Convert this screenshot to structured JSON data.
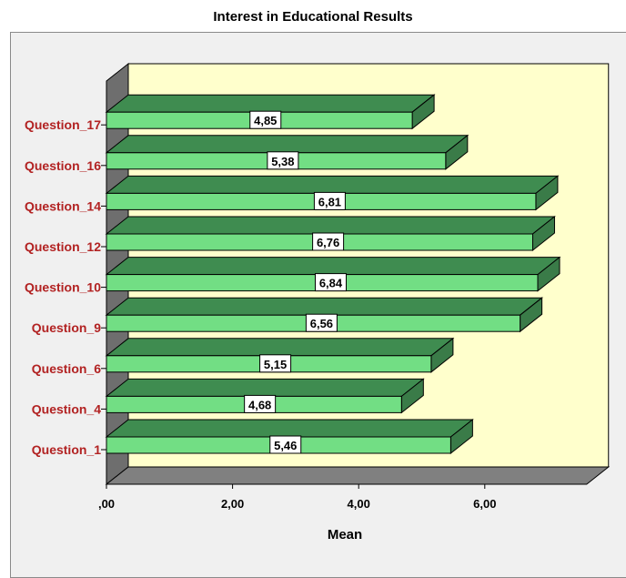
{
  "chart_data": {
    "type": "bar",
    "orientation": "horizontal",
    "style": "3d",
    "title": "Interest in Educational Results",
    "xlabel": "Mean",
    "ylabel": "",
    "categories": [
      "Question_1",
      "Question_4",
      "Question_6",
      "Question_9",
      "Question_10",
      "Question_12",
      "Question_14",
      "Question_16",
      "Question_17"
    ],
    "values": [
      5.46,
      4.68,
      5.15,
      6.56,
      6.84,
      6.76,
      6.81,
      5.38,
      4.85
    ],
    "value_labels": [
      "5,46",
      "4,68",
      "5,15",
      "6,56",
      "6,84",
      "6,76",
      "6,81",
      "5,38",
      "4,85"
    ],
    "xlim": [
      0,
      7.5
    ],
    "xticks": [
      0,
      2,
      4,
      6
    ],
    "xtick_labels": [
      ",00",
      "2,00",
      "4,00",
      "6,00"
    ],
    "grid": false,
    "legend": "none",
    "colors": {
      "bar_front": "#72de84",
      "bar_top": "#3f8c50",
      "bar_side": "#3a7b48",
      "back_wall": "#ffffcc",
      "side_wall": "#6e6e6e",
      "floor": "#808080",
      "label_text": "#b22222"
    }
  }
}
